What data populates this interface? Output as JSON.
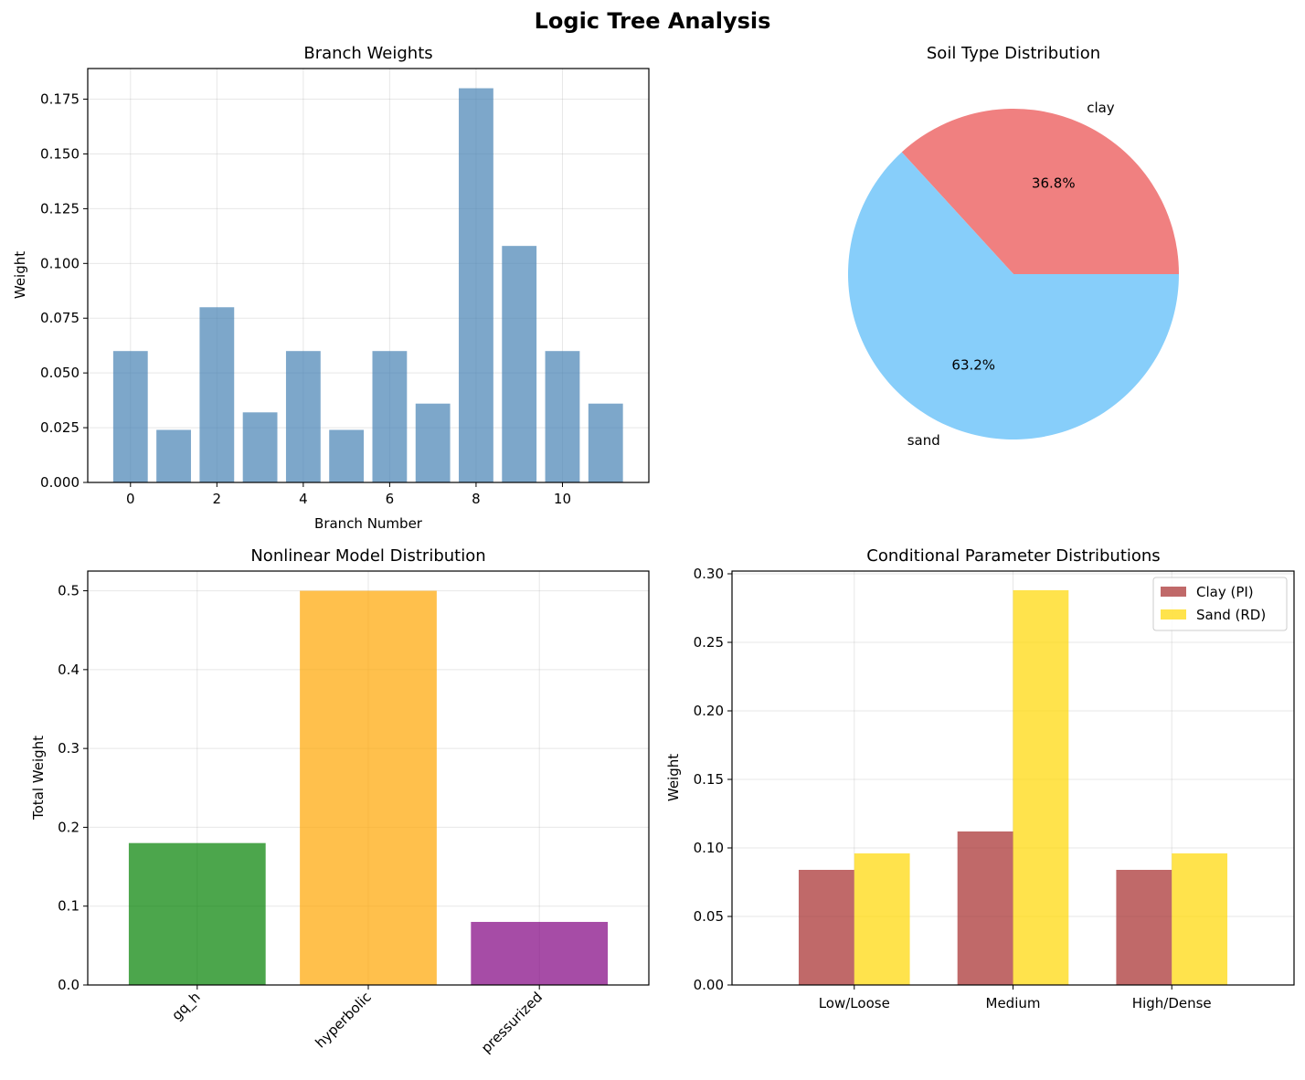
{
  "title": "Logic Tree Analysis",
  "chart_data": [
    {
      "type": "bar",
      "title": "Branch Weights",
      "xlabel": "Branch Number",
      "ylabel": "Weight",
      "x": [
        0,
        1,
        2,
        3,
        4,
        5,
        6,
        7,
        8,
        9,
        10,
        11
      ],
      "values": [
        0.06,
        0.024,
        0.08,
        0.032,
        0.06,
        0.024,
        0.06,
        0.036,
        0.18,
        0.108,
        0.06,
        0.036
      ],
      "xticks": [
        0,
        2,
        4,
        6,
        8,
        10
      ],
      "xtick_labels": [
        "0",
        "2",
        "4",
        "6",
        "8",
        "10"
      ],
      "yticks": [
        0,
        0.025,
        0.05,
        0.075,
        0.1,
        0.125,
        0.15,
        0.175
      ],
      "ytick_labels": [
        "0.000",
        "0.025",
        "0.050",
        "0.075",
        "0.100",
        "0.125",
        "0.150",
        "0.175"
      ],
      "xlim": [
        -0.99,
        12.0
      ],
      "ylim": [
        0,
        0.189
      ],
      "color": "#4682b4",
      "grid": true
    },
    {
      "type": "pie",
      "title": "Soil Type Distribution",
      "labels": [
        "clay",
        "sand"
      ],
      "values": [
        36.8,
        63.2
      ],
      "pct_labels": [
        "36.8%",
        "63.2%"
      ],
      "colors": [
        "#f08080",
        "#87cefa"
      ]
    },
    {
      "type": "bar",
      "title": "Nonlinear Model Distribution",
      "xlabel": "",
      "ylabel": "Total Weight",
      "categories": [
        "gq_h",
        "hyperbolic",
        "pressurized"
      ],
      "values": [
        0.18,
        0.5,
        0.08
      ],
      "colors": [
        "#008000",
        "#ffa500",
        "#800080"
      ],
      "yticks": [
        0,
        0.1,
        0.2,
        0.3,
        0.4,
        0.5
      ],
      "ytick_labels": [
        "0.0",
        "0.1",
        "0.2",
        "0.3",
        "0.4",
        "0.5"
      ],
      "ylim": [
        0,
        0.525
      ],
      "grid": true
    },
    {
      "type": "bar",
      "title": "Conditional Parameter Distributions",
      "xlabel": "",
      "ylabel": "Weight",
      "categories": [
        "Low/Loose",
        "Medium",
        "High/Dense"
      ],
      "series": [
        {
          "name": "Clay (PI)",
          "values": [
            0.084,
            0.112,
            0.084
          ],
          "color": "#a52a2a"
        },
        {
          "name": "Sand (RD)",
          "values": [
            0.096,
            0.288,
            0.096
          ],
          "color": "#ffd700"
        }
      ],
      "yticks": [
        0,
        0.05,
        0.1,
        0.15,
        0.2,
        0.25,
        0.3
      ],
      "ytick_labels": [
        "0.00",
        "0.05",
        "0.10",
        "0.15",
        "0.20",
        "0.25",
        "0.30"
      ],
      "ylim": [
        0,
        0.302
      ],
      "legend": "top-right",
      "grid": true
    }
  ]
}
